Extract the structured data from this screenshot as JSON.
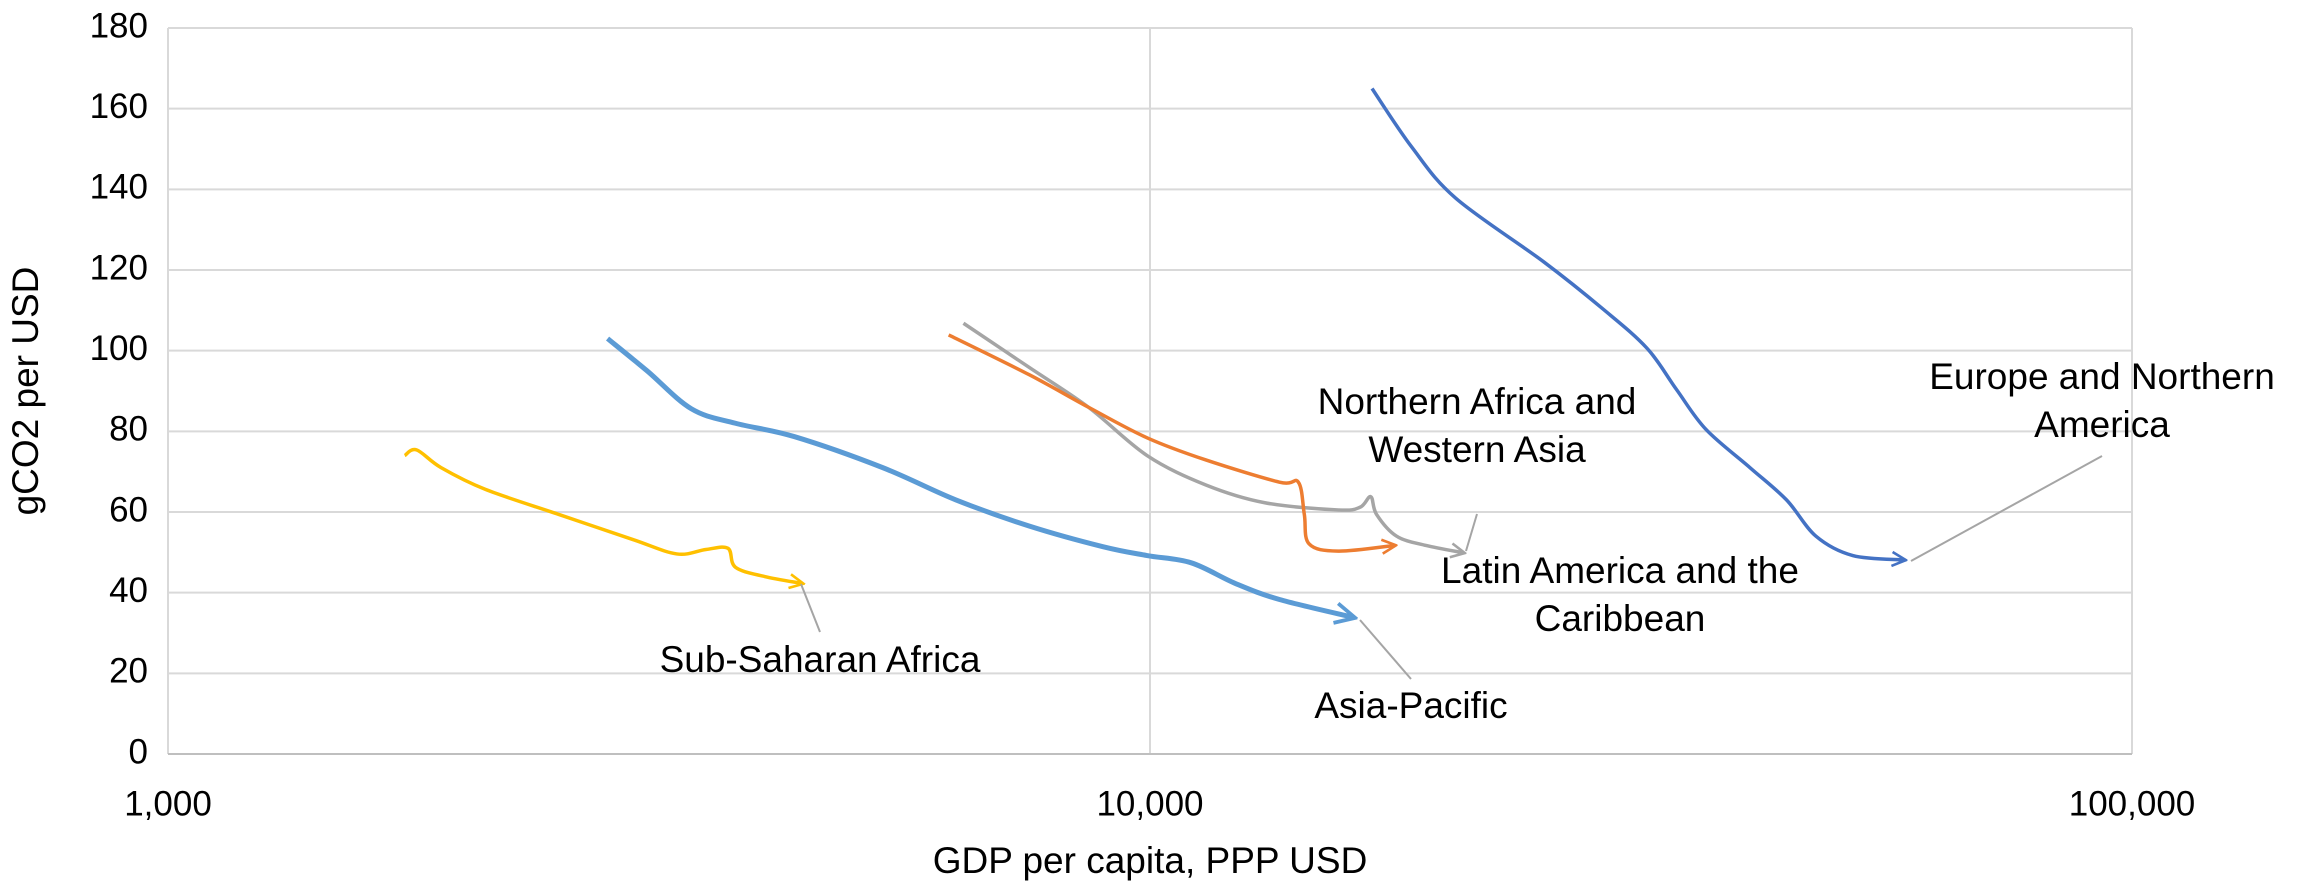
{
  "chart_data": {
    "type": "line",
    "x_label": "GDP per capita, PPP USD",
    "y_label": "gCO2 per USD",
    "x_log": true,
    "grid": true,
    "xlim": [
      1000,
      100000
    ],
    "xticks": [
      {
        "value": 1000,
        "label": "1,000"
      },
      {
        "value": 10000,
        "label": "10,000"
      },
      {
        "value": 100000,
        "label": "100,000"
      }
    ],
    "ylim": [
      0,
      180
    ],
    "yticks": [
      0,
      20,
      40,
      60,
      80,
      100,
      120,
      140,
      160,
      180
    ],
    "series": [
      {
        "name": "Sub-Saharan Africa",
        "color": "#ffc000",
        "x": [
          1742,
          1791,
          1897,
          2105,
          2500,
          2972,
          3297,
          3530,
          3717,
          3783,
          4052,
          4420
        ],
        "values": [
          74,
          75.4,
          71,
          65.6,
          59.4,
          53.2,
          49.6,
          50.7,
          51,
          46.3,
          44,
          42.3
        ]
      },
      {
        "name": "Asia-Pacific",
        "color": "#5b9bd5",
        "x": [
          2803,
          3075,
          3411,
          3783,
          4342,
          5343,
          6344,
          7538,
          8954,
          9931,
          11015,
          12212,
          13548,
          16090
        ],
        "values": [
          103,
          95,
          85.6,
          82,
          78.7,
          71,
          63,
          56.5,
          51.4,
          49.2,
          47.4,
          42.3,
          38.3,
          33.9
        ]
      },
      {
        "name": "Northern Africa and Western Asia",
        "color": "#a5a5a5",
        "x": [
          6457,
          7538,
          8653,
          9931,
          11400,
          13090,
          15550,
          16370,
          16780,
          17010,
          17830,
          19100,
          20840
        ],
        "values": [
          106.8,
          95.8,
          86,
          74,
          66.7,
          62.3,
          60.5,
          61.2,
          63.8,
          59.4,
          54,
          51.7,
          49.9
        ]
      },
      {
        "name": "Latin America and the Caribbean",
        "color": "#ed7d31",
        "x": [
          6237,
          7538,
          8653,
          9931,
          11400,
          13548,
          14160,
          14360,
          14520,
          15550,
          17730
        ],
        "values": [
          103.9,
          94,
          86,
          78.4,
          72.9,
          67.4,
          67.4,
          59.4,
          52.1,
          50.3,
          51.7
        ]
      },
      {
        "name": "Europe and Northern America",
        "color": "#4472c4",
        "x": [
          16830,
          18470,
          20480,
          25180,
          28900,
          32070,
          34360,
          36820,
          40830,
          44480,
          47660,
          51960,
          58620
        ],
        "values": [
          165,
          150.5,
          137.8,
          122,
          110.4,
          100.6,
          90.4,
          80.5,
          71,
          63,
          54,
          49.2,
          48.1
        ]
      }
    ]
  }
}
